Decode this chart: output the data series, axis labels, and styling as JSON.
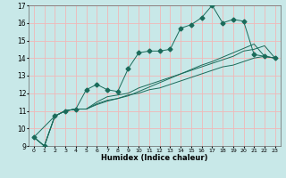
{
  "title": "",
  "xlabel": "Humidex (Indice chaleur)",
  "ylabel": "",
  "xlim": [
    -0.5,
    23.5
  ],
  "ylim": [
    9,
    17
  ],
  "xticks": [
    0,
    1,
    2,
    3,
    4,
    5,
    6,
    7,
    8,
    9,
    10,
    11,
    12,
    13,
    14,
    15,
    16,
    17,
    18,
    19,
    20,
    21,
    22,
    23
  ],
  "yticks": [
    9,
    10,
    11,
    12,
    13,
    14,
    15,
    16,
    17
  ],
  "bg_color": "#c8e8e8",
  "line_color": "#1a6b5a",
  "grid_color": "#f0b8b8",
  "series": [
    {
      "x": [
        0,
        1,
        2,
        3,
        4,
        5,
        6,
        7,
        8,
        9,
        10,
        11,
        12,
        13,
        14,
        15,
        16,
        17,
        18,
        19,
        20,
        21,
        22,
        23
      ],
      "y": [
        9.5,
        9.0,
        10.7,
        11.0,
        11.1,
        12.2,
        12.5,
        12.2,
        12.1,
        13.4,
        14.3,
        14.4,
        14.4,
        14.5,
        15.7,
        15.9,
        16.3,
        17.0,
        16.0,
        16.2,
        16.1,
        14.2,
        14.1,
        14.0
      ],
      "marker": "D",
      "markersize": 2.5
    },
    {
      "x": [
        0,
        1,
        2,
        3,
        4,
        5,
        6,
        7,
        8,
        9,
        10,
        11,
        12,
        13,
        14,
        15,
        16,
        17,
        18,
        19,
        20,
        21,
        22,
        23
      ],
      "y": [
        9.5,
        9.0,
        10.7,
        11.0,
        11.1,
        11.1,
        11.5,
        11.8,
        11.9,
        12.0,
        12.3,
        12.5,
        12.7,
        12.9,
        13.1,
        13.3,
        13.5,
        13.7,
        13.9,
        14.1,
        14.4,
        14.5,
        14.7,
        14.0
      ],
      "marker": null,
      "markersize": 0
    },
    {
      "x": [
        0,
        1,
        2,
        3,
        4,
        5,
        6,
        7,
        8,
        9,
        10,
        11,
        12,
        13,
        14,
        15,
        16,
        17,
        18,
        19,
        20,
        21,
        22,
        23
      ],
      "y": [
        9.5,
        9.0,
        10.7,
        11.0,
        11.1,
        11.1,
        11.4,
        11.6,
        11.7,
        11.9,
        12.0,
        12.2,
        12.3,
        12.5,
        12.7,
        12.9,
        13.1,
        13.3,
        13.5,
        13.6,
        13.8,
        14.0,
        14.1,
        14.0
      ],
      "marker": null,
      "markersize": 0
    },
    {
      "x": [
        0,
        2,
        3,
        4,
        5,
        6,
        7,
        9,
        10,
        11,
        12,
        13,
        14,
        15,
        16,
        17,
        18,
        19,
        20,
        21,
        22,
        23
      ],
      "y": [
        9.5,
        10.7,
        11.0,
        11.1,
        11.1,
        11.35,
        11.55,
        11.85,
        12.1,
        12.35,
        12.6,
        12.85,
        13.1,
        13.35,
        13.6,
        13.8,
        14.05,
        14.3,
        14.55,
        14.8,
        14.1,
        14.0
      ],
      "marker": null,
      "markersize": 0
    }
  ]
}
